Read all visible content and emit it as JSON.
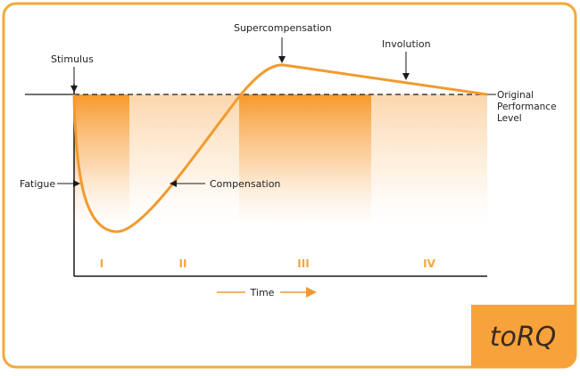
{
  "colors": {
    "accent": "#f7a23b",
    "curve": "#f29a2e",
    "frame": "#f2a93b",
    "axis": "#1a1a1a",
    "text": "#222222",
    "phase_label": "#f4a640",
    "logo_bg": "#f7a23b",
    "logo_text": "#3a2a20"
  },
  "labels": {
    "stimulus": "Stimulus",
    "supercompensation": "Supercompensation",
    "involution": "Involution",
    "baseline_line1": "Original",
    "baseline_line2": "Performance",
    "baseline_line3": "Level",
    "fatigue": "Fatigue",
    "compensation": "Compensation",
    "time": "Time"
  },
  "phases": [
    "I",
    "II",
    "III",
    "IV"
  ],
  "logo": {
    "text": "toRQ"
  }
}
